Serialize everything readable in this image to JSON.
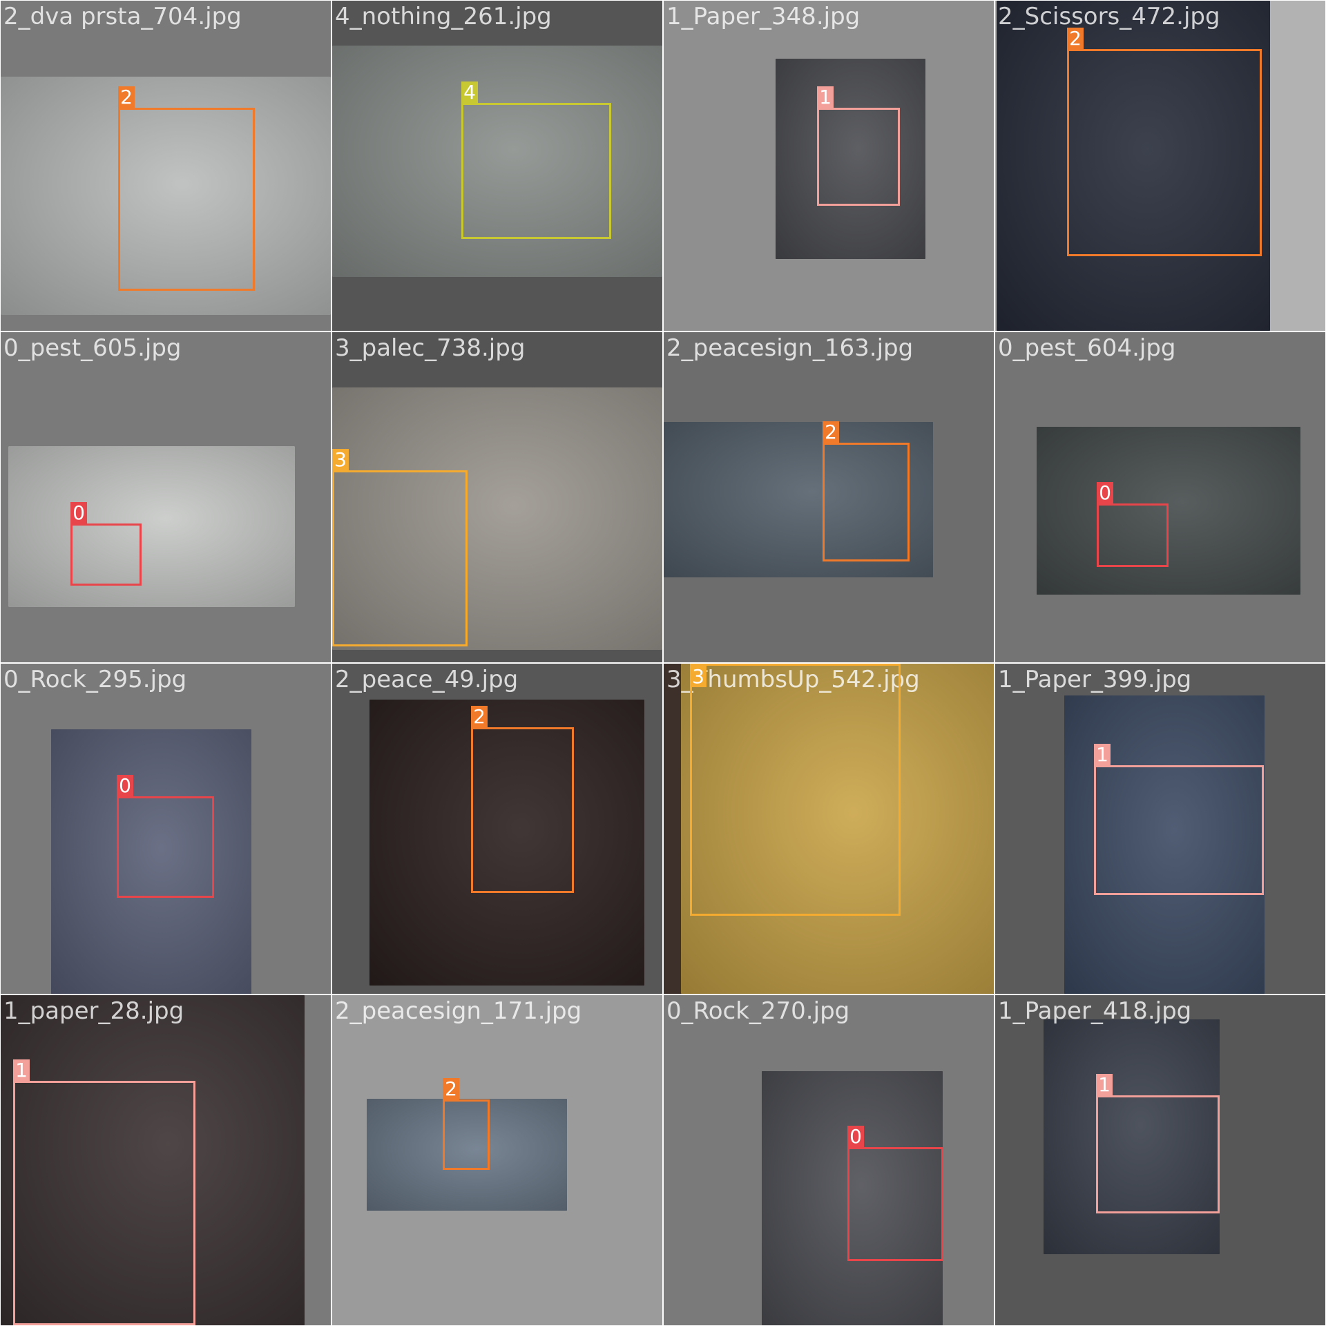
{
  "grid": {
    "tiles": [
      {
        "filename": "2_dva prsta_704.jpg",
        "tile_bg": "#7a7a7a",
        "photo_color": "#b9bcbb",
        "detections": [
          {
            "class_id": "2",
            "color": "#f07a2a"
          }
        ]
      },
      {
        "filename": "4_nothing_261.jpg",
        "tile_bg": "#555555",
        "photo_color": "#8a8f8c",
        "detections": [
          {
            "class_id": "4",
            "color": "#c8c832"
          }
        ]
      },
      {
        "filename": "1_Paper_348.jpg",
        "tile_bg": "#8f8f8f",
        "photo_color": "#4c4d52",
        "detections": [
          {
            "class_id": "1",
            "color": "#f3a09a"
          }
        ]
      },
      {
        "filename": "2_Scissors_472.jpg",
        "tile_bg": "#b2b2b2",
        "photo_color": "#272c3a",
        "detections": [
          {
            "class_id": "2",
            "color": "#f07a2a"
          }
        ]
      },
      {
        "filename": "0_pest_605.jpg",
        "tile_bg": "#7a7a7a",
        "photo_color": "#c7c9c7",
        "detections": [
          {
            "class_id": "0",
            "color": "#e8454a"
          }
        ]
      },
      {
        "filename": "3_palec_738.jpg",
        "tile_bg": "#545454",
        "photo_color": "#9a958e",
        "detections": [
          {
            "class_id": "3",
            "color": "#f5ab30"
          }
        ]
      },
      {
        "filename": "2_peacesign_163.jpg",
        "tile_bg": "#6d6d6d",
        "photo_color": "#54606b",
        "detections": [
          {
            "class_id": "2",
            "color": "#f07a2a"
          }
        ]
      },
      {
        "filename": "0_pest_604.jpg",
        "tile_bg": "#747474",
        "photo_color": "#454b4c",
        "detections": [
          {
            "class_id": "0",
            "color": "#e8454a"
          }
        ]
      },
      {
        "filename": "0_Rock_295.jpg",
        "tile_bg": "#7a7a7a",
        "photo_color": "#5a6078",
        "detections": [
          {
            "class_id": "0",
            "color": "#e8454a"
          }
        ]
      },
      {
        "filename": "2_peace_49.jpg",
        "tile_bg": "#575757",
        "photo_color": "#2c2020",
        "detections": [
          {
            "class_id": "2",
            "color": "#f07a2a"
          }
        ]
      },
      {
        "filename": "3_ThumbsUp_542.jpg",
        "tile_bg": "#3d2f2a",
        "photo_color": "#c9a447",
        "detections": [
          {
            "class_id": "3",
            "color": "#f5ab30"
          }
        ]
      },
      {
        "filename": "1_Paper_399.jpg",
        "tile_bg": "#5b5b5b",
        "photo_color": "#3d4b64",
        "detections": [
          {
            "class_id": "1",
            "color": "#f3a09a"
          }
        ]
      },
      {
        "filename": "1_paper_28.jpg",
        "tile_bg": "#7a7a7a",
        "photo_color": "#3b3232",
        "detections": [
          {
            "class_id": "1",
            "color": "#f3a09a"
          }
        ]
      },
      {
        "filename": "2_peacesign_171.jpg",
        "tile_bg": "#9b9b9b",
        "photo_color": "#6a7888",
        "detections": [
          {
            "class_id": "2",
            "color": "#f07a2a"
          }
        ]
      },
      {
        "filename": "0_Rock_270.jpg",
        "tile_bg": "#7a7a7a",
        "photo_color": "#4e4f55",
        "detections": [
          {
            "class_id": "0",
            "color": "#e8454a"
          }
        ]
      },
      {
        "filename": "1_Paper_418.jpg",
        "tile_bg": "#575757",
        "photo_color": "#3a404c",
        "detections": [
          {
            "class_id": "1",
            "color": "#f3a09a"
          }
        ]
      }
    ]
  }
}
